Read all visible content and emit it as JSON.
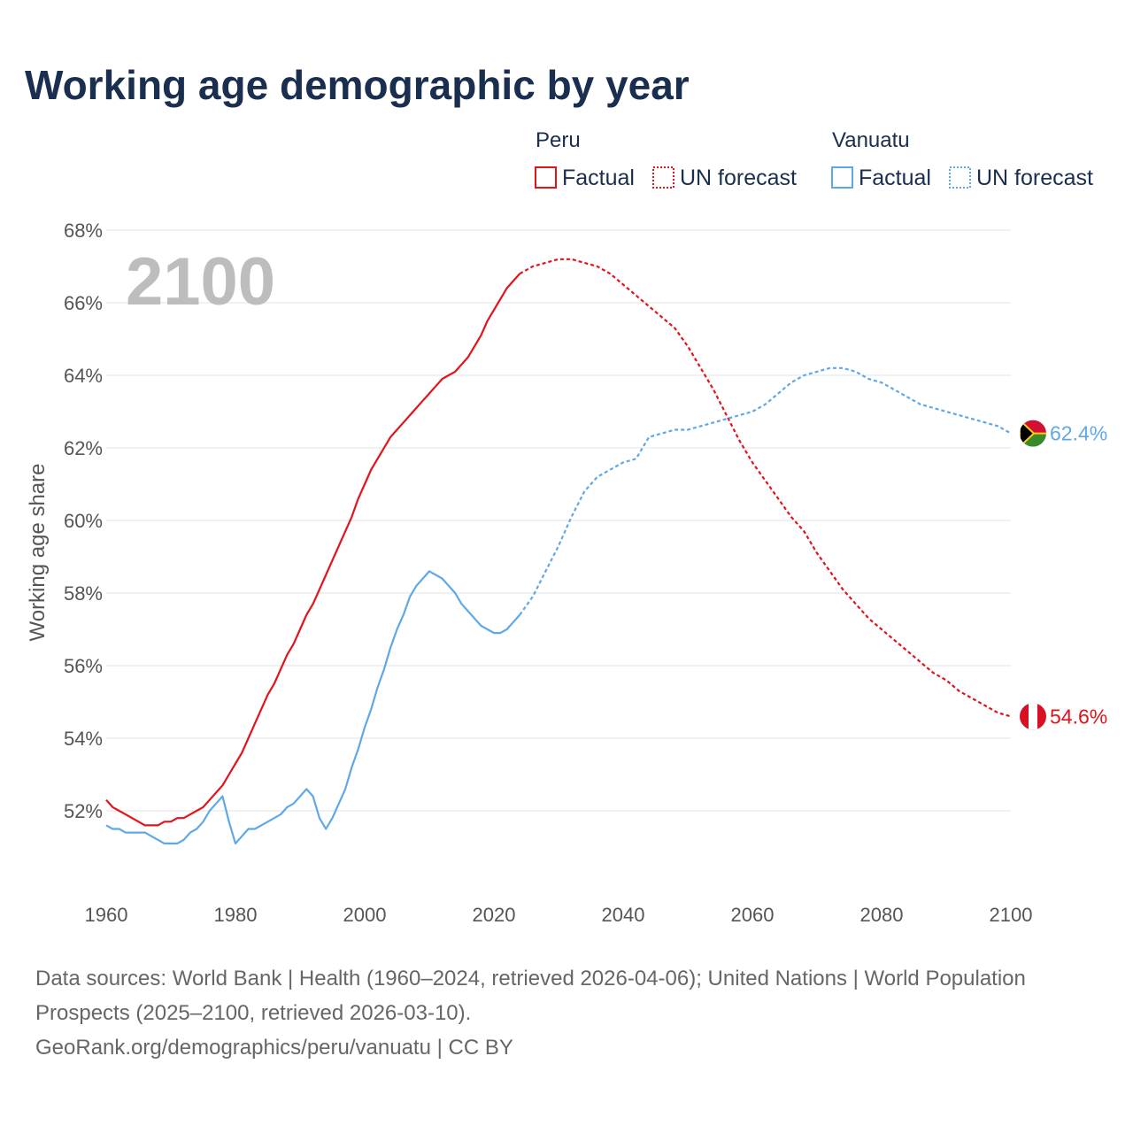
{
  "chart_data": {
    "type": "line",
    "title": "Working age demographic by year",
    "ylabel": "Working age share",
    "xlabel": "",
    "xlim": [
      1960,
      2100
    ],
    "ylim": [
      50,
      68
    ],
    "x_ticks": [
      1960,
      1980,
      2000,
      2020,
      2040,
      2060,
      2080,
      2100
    ],
    "y_ticks": [
      52,
      54,
      56,
      58,
      60,
      62,
      64,
      66,
      68
    ],
    "y_tick_format": "%",
    "year_label": "2100",
    "legend": {
      "groups": [
        {
          "name": "Peru",
          "color": "#e3121b",
          "factual_label": "Factual",
          "forecast_label": "UN forecast"
        },
        {
          "name": "Vanuatu",
          "color": "#5fa8e8",
          "factual_label": "Factual",
          "forecast_label": "UN forecast"
        }
      ]
    },
    "series": [
      {
        "name": "Peru",
        "color": "#e3121b",
        "factual": {
          "x": [
            1960,
            1961,
            1962,
            1963,
            1964,
            1965,
            1966,
            1967,
            1968,
            1969,
            1970,
            1971,
            1972,
            1973,
            1974,
            1975,
            1976,
            1977,
            1978,
            1979,
            1980,
            1981,
            1982,
            1983,
            1984,
            1985,
            1986,
            1987,
            1988,
            1989,
            1990,
            1991,
            1992,
            1993,
            1994,
            1995,
            1996,
            1997,
            1998,
            1999,
            2000,
            2001,
            2002,
            2003,
            2004,
            2005,
            2006,
            2007,
            2008,
            2009,
            2010,
            2011,
            2012,
            2013,
            2014,
            2015,
            2016,
            2017,
            2018,
            2019,
            2020,
            2021,
            2022,
            2023,
            2024
          ],
          "y": [
            52.3,
            52.1,
            52.0,
            51.9,
            51.8,
            51.7,
            51.6,
            51.6,
            51.6,
            51.7,
            51.7,
            51.8,
            51.8,
            51.9,
            52.0,
            52.1,
            52.3,
            52.5,
            52.7,
            53.0,
            53.3,
            53.6,
            54.0,
            54.4,
            54.8,
            55.2,
            55.5,
            55.9,
            56.3,
            56.6,
            57.0,
            57.4,
            57.7,
            58.1,
            58.5,
            58.9,
            59.3,
            59.7,
            60.1,
            60.6,
            61.0,
            61.4,
            61.7,
            62.0,
            62.3,
            62.5,
            62.7,
            62.9,
            63.1,
            63.3,
            63.5,
            63.7,
            63.9,
            64.0,
            64.1,
            64.3,
            64.5,
            64.8,
            65.1,
            65.5,
            65.8,
            66.1,
            66.4,
            66.6,
            66.8
          ]
        },
        "forecast": {
          "x": [
            2024,
            2026,
            2028,
            2030,
            2032,
            2034,
            2036,
            2038,
            2040,
            2042,
            2044,
            2046,
            2048,
            2050,
            2052,
            2054,
            2056,
            2058,
            2060,
            2062,
            2064,
            2066,
            2068,
            2070,
            2072,
            2074,
            2076,
            2078,
            2080,
            2082,
            2084,
            2086,
            2088,
            2090,
            2092,
            2094,
            2096,
            2098,
            2100
          ],
          "y": [
            66.8,
            67.0,
            67.1,
            67.2,
            67.2,
            67.1,
            67.0,
            66.8,
            66.5,
            66.2,
            65.9,
            65.6,
            65.3,
            64.8,
            64.2,
            63.6,
            62.9,
            62.2,
            61.6,
            61.1,
            60.6,
            60.1,
            59.7,
            59.1,
            58.6,
            58.1,
            57.7,
            57.3,
            57.0,
            56.7,
            56.4,
            56.1,
            55.8,
            55.6,
            55.3,
            55.1,
            54.9,
            54.7,
            54.6
          ]
        },
        "end_value": 54.6,
        "end_label": "54.6%"
      },
      {
        "name": "Vanuatu",
        "color": "#5fa8e8",
        "factual": {
          "x": [
            1960,
            1961,
            1962,
            1963,
            1964,
            1965,
            1966,
            1967,
            1968,
            1969,
            1970,
            1971,
            1972,
            1973,
            1974,
            1975,
            1976,
            1977,
            1978,
            1979,
            1980,
            1981,
            1982,
            1983,
            1984,
            1985,
            1986,
            1987,
            1988,
            1989,
            1990,
            1991,
            1992,
            1993,
            1994,
            1995,
            1996,
            1997,
            1998,
            1999,
            2000,
            2001,
            2002,
            2003,
            2004,
            2005,
            2006,
            2007,
            2008,
            2009,
            2010,
            2011,
            2012,
            2013,
            2014,
            2015,
            2016,
            2017,
            2018,
            2019,
            2020,
            2021,
            2022,
            2023,
            2024
          ],
          "y": [
            51.6,
            51.5,
            51.5,
            51.4,
            51.4,
            51.4,
            51.4,
            51.3,
            51.2,
            51.1,
            51.1,
            51.1,
            51.2,
            51.4,
            51.5,
            51.7,
            52.0,
            52.2,
            52.4,
            51.7,
            51.1,
            51.3,
            51.5,
            51.5,
            51.6,
            51.7,
            51.8,
            51.9,
            52.1,
            52.2,
            52.4,
            52.6,
            52.4,
            51.8,
            51.5,
            51.8,
            52.2,
            52.6,
            53.2,
            53.7,
            54.3,
            54.8,
            55.4,
            55.9,
            56.5,
            57.0,
            57.4,
            57.9,
            58.2,
            58.4,
            58.6,
            58.5,
            58.4,
            58.2,
            58.0,
            57.7,
            57.5,
            57.3,
            57.1,
            57.0,
            56.9,
            56.9,
            57.0,
            57.2,
            57.4
          ]
        },
        "forecast": {
          "x": [
            2024,
            2026,
            2028,
            2030,
            2032,
            2034,
            2036,
            2038,
            2040,
            2042,
            2044,
            2046,
            2048,
            2050,
            2052,
            2054,
            2056,
            2058,
            2060,
            2062,
            2064,
            2066,
            2068,
            2070,
            2072,
            2074,
            2076,
            2078,
            2080,
            2082,
            2084,
            2086,
            2088,
            2090,
            2092,
            2094,
            2096,
            2098,
            2100
          ],
          "y": [
            57.4,
            57.9,
            58.6,
            59.3,
            60.1,
            60.8,
            61.2,
            61.4,
            61.6,
            61.7,
            62.3,
            62.4,
            62.5,
            62.5,
            62.6,
            62.7,
            62.8,
            62.9,
            63.0,
            63.2,
            63.5,
            63.8,
            64.0,
            64.1,
            64.2,
            64.2,
            64.1,
            63.9,
            63.8,
            63.6,
            63.4,
            63.2,
            63.1,
            63.0,
            62.9,
            62.8,
            62.7,
            62.6,
            62.4
          ]
        },
        "end_value": 62.4,
        "end_label": "62.4%"
      }
    ]
  },
  "footer": {
    "sources": "Data sources: World Bank | Health (1960–2024, retrieved 2026-04-06); United Nations | World Population Prospects (2025–2100, retrieved 2026-03-10).",
    "credit": "GeoRank.org/demographics/peru/vanuatu | CC BY"
  }
}
